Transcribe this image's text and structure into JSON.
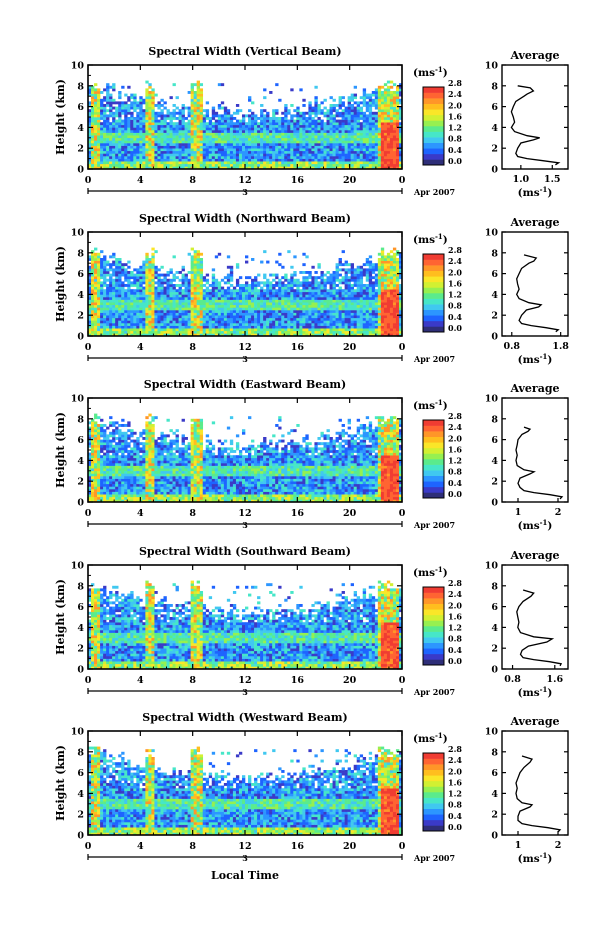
{
  "figure": {
    "xlabel_bottom": "Local Time"
  },
  "colorbar": {
    "unit": "(ms",
    "unit_sup": "-1",
    "unit_close": ")",
    "ticks": [
      "2.8",
      "2.4",
      "2.0",
      "1.6",
      "1.2",
      "0.8",
      "0.4",
      "0.0"
    ],
    "colors": [
      "#2e2e78",
      "#3a3ac8",
      "#1e64ff",
      "#2c96ff",
      "#40c8f0",
      "#46e6c8",
      "#5aeb8c",
      "#96f050",
      "#d2f032",
      "#fae628",
      "#ffbe1e",
      "#ff9628",
      "#ff6432",
      "#f03c32"
    ]
  },
  "chart_data": [
    {
      "type": "heatmap",
      "title": "Spectral Width (Vertical Beam)",
      "ylabel": "Height (km)",
      "ylim": [
        0,
        10
      ],
      "x_ticks": [
        "0",
        "4",
        "8",
        "12",
        "16",
        "20",
        "0"
      ],
      "x_range_hours": [
        0,
        24
      ],
      "date_marker": "3",
      "date_label": "Apr 2007",
      "colorbar_range": [
        0.0,
        2.8
      ],
      "average_profile": {
        "title": "Average",
        "xlabel": "(ms",
        "xlabel_sup": "-1",
        "xlabel_close": ")",
        "x_ticks": [
          "1.0",
          "1.5"
        ],
        "x_tick_values": [
          1.0,
          1.5
        ],
        "xlim": [
          0.7,
          1.75
        ],
        "ylim": [
          0,
          10
        ],
        "y_ticks": [
          "0",
          "2",
          "4",
          "6",
          "8",
          "10"
        ],
        "heights": [
          0.4,
          0.6,
          0.8,
          1.0,
          1.2,
          1.5,
          2.0,
          2.5,
          2.8,
          3.0,
          3.2,
          3.6,
          4.0,
          4.5,
          5.0,
          5.5,
          6.0,
          6.5,
          7.0,
          7.2,
          7.5,
          7.8,
          8.0
        ],
        "values": [
          1.55,
          1.6,
          1.35,
          1.1,
          0.95,
          0.92,
          0.95,
          1.0,
          1.2,
          1.3,
          1.1,
          0.9,
          0.85,
          0.9,
          0.88,
          0.85,
          0.88,
          0.92,
          1.05,
          1.1,
          1.2,
          1.15,
          0.95
        ]
      }
    },
    {
      "type": "heatmap",
      "title": "Spectral Width (Northward Beam)",
      "ylabel": "Height (km)",
      "ylim": [
        0,
        10
      ],
      "x_ticks": [
        "0",
        "4",
        "8",
        "12",
        "16",
        "20",
        "0"
      ],
      "x_range_hours": [
        0,
        24
      ],
      "date_marker": "3",
      "date_label": "Apr 2007",
      "colorbar_range": [
        0.0,
        2.8
      ],
      "average_profile": {
        "title": "Average",
        "xlabel": "(ms",
        "xlabel_sup": "-1",
        "xlabel_close": ")",
        "x_ticks": [
          "0.8",
          "1.8"
        ],
        "x_tick_values": [
          0.8,
          1.8
        ],
        "xlim": [
          0.6,
          1.95
        ],
        "ylim": [
          0,
          10
        ],
        "y_ticks": [
          "0",
          "2",
          "4",
          "6",
          "8",
          "10"
        ],
        "heights": [
          0.4,
          0.6,
          0.8,
          1.0,
          1.2,
          1.5,
          2.0,
          2.5,
          2.8,
          3.0,
          3.2,
          3.6,
          4.0,
          4.5,
          5.0,
          5.5,
          6.0,
          6.5,
          7.0,
          7.2,
          7.5,
          7.8
        ],
        "values": [
          1.7,
          1.75,
          1.5,
          1.2,
          1.0,
          0.95,
          1.0,
          1.1,
          1.35,
          1.4,
          1.15,
          0.95,
          0.9,
          0.95,
          0.92,
          0.9,
          0.95,
          1.0,
          1.15,
          1.25,
          1.3,
          1.05
        ]
      }
    },
    {
      "type": "heatmap",
      "title": "Spectral Width (Eastward Beam)",
      "ylabel": "Height (km)",
      "ylim": [
        0,
        10
      ],
      "x_ticks": [
        "0",
        "4",
        "8",
        "12",
        "16",
        "20",
        "0"
      ],
      "x_range_hours": [
        0,
        24
      ],
      "date_marker": "3",
      "date_label": "Apr 2007",
      "colorbar_range": [
        0.0,
        2.8
      ],
      "average_profile": {
        "title": "Average",
        "xlabel": "(ms",
        "xlabel_sup": "-1",
        "xlabel_close": ")",
        "x_ticks": [
          "1",
          "2"
        ],
        "x_tick_values": [
          1,
          2
        ],
        "xlim": [
          0.6,
          2.25
        ],
        "ylim": [
          0,
          10
        ],
        "y_ticks": [
          "0",
          "2",
          "4",
          "6",
          "8",
          "10"
        ],
        "heights": [
          0.3,
          0.5,
          0.7,
          0.9,
          1.1,
          1.4,
          1.8,
          2.3,
          2.7,
          2.9,
          3.1,
          3.5,
          4.0,
          4.5,
          5.0,
          5.5,
          6.0,
          6.5,
          6.8,
          7.0,
          7.2
        ],
        "values": [
          2.05,
          2.1,
          1.8,
          1.4,
          1.15,
          1.05,
          1.0,
          1.05,
          1.3,
          1.4,
          1.15,
          0.98,
          0.95,
          0.98,
          0.95,
          0.98,
          1.0,
          1.1,
          1.25,
          1.3,
          1.15
        ]
      }
    },
    {
      "type": "heatmap",
      "title": "Spectral Width (Southward Beam)",
      "ylabel": "Height (km)",
      "ylim": [
        0,
        10
      ],
      "x_ticks": [
        "0",
        "4",
        "8",
        "12",
        "16",
        "20",
        "0"
      ],
      "x_range_hours": [
        0,
        24
      ],
      "date_marker": "3",
      "date_label": "Apr 2007",
      "colorbar_range": [
        0.0,
        2.8
      ],
      "average_profile": {
        "title": "Average",
        "xlabel": "(ms",
        "xlabel_sup": "-1",
        "xlabel_close": ")",
        "x_ticks": [
          "0.8",
          "1.6"
        ],
        "x_tick_values": [
          0.8,
          1.6
        ],
        "xlim": [
          0.6,
          1.85
        ],
        "ylim": [
          0,
          10
        ],
        "y_ticks": [
          "0",
          "2",
          "4",
          "6",
          "8",
          "10"
        ],
        "heights": [
          0.3,
          0.5,
          0.7,
          0.9,
          1.1,
          1.4,
          1.8,
          2.2,
          2.6,
          2.9,
          3.1,
          3.5,
          4.0,
          4.5,
          5.0,
          5.5,
          6.0,
          6.5,
          7.0,
          7.3,
          7.6
        ],
        "values": [
          1.7,
          1.72,
          1.5,
          1.2,
          1.0,
          0.95,
          0.98,
          1.1,
          1.45,
          1.55,
          1.2,
          0.95,
          0.9,
          0.92,
          0.9,
          0.88,
          0.92,
          1.0,
          1.15,
          1.2,
          1.0
        ]
      }
    },
    {
      "type": "heatmap",
      "title": "Spectral Width (Westward Beam)",
      "ylabel": "Height (km)",
      "ylim": [
        0,
        10
      ],
      "x_ticks": [
        "0",
        "4",
        "8",
        "12",
        "16",
        "20",
        "0"
      ],
      "x_range_hours": [
        0,
        24
      ],
      "date_marker": "3",
      "date_label": "Apr 2007",
      "colorbar_range": [
        0.0,
        2.8
      ],
      "average_profile": {
        "title": "Average",
        "xlabel": "(ms",
        "xlabel_sup": "-1",
        "xlabel_close": ")",
        "x_ticks": [
          "1",
          "2"
        ],
        "x_tick_values": [
          1,
          2
        ],
        "xlim": [
          0.6,
          2.25
        ],
        "ylim": [
          0,
          10
        ],
        "y_ticks": [
          "0",
          "2",
          "4",
          "6",
          "8",
          "10"
        ],
        "heights": [
          0.3,
          0.5,
          0.7,
          0.9,
          1.1,
          1.4,
          1.8,
          2.3,
          2.7,
          2.9,
          3.1,
          3.5,
          4.0,
          4.5,
          5.0,
          5.5,
          6.0,
          6.5,
          7.0,
          7.3,
          7.6
        ],
        "values": [
          2.0,
          2.05,
          1.75,
          1.35,
          1.1,
          1.0,
          1.0,
          1.05,
          1.3,
          1.35,
          1.1,
          0.98,
          0.95,
          0.98,
          0.95,
          1.0,
          1.05,
          1.15,
          1.3,
          1.35,
          1.1
        ]
      }
    }
  ]
}
